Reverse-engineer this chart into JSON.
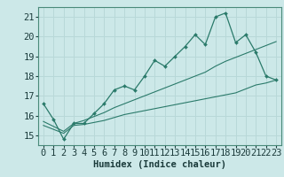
{
  "xlabel": "Humidex (Indice chaleur)",
  "bg_color": "#cce8e8",
  "grid_color": "#b8d8d8",
  "line_color": "#2a7a6a",
  "x": [
    0,
    1,
    2,
    3,
    4,
    5,
    6,
    7,
    8,
    9,
    10,
    11,
    12,
    13,
    14,
    15,
    16,
    17,
    18,
    19,
    20,
    21,
    22,
    23
  ],
  "y_main": [
    16.6,
    15.8,
    14.8,
    15.6,
    15.6,
    16.1,
    16.6,
    17.3,
    17.5,
    17.3,
    18.0,
    18.8,
    18.5,
    19.0,
    19.5,
    20.1,
    19.6,
    21.0,
    21.2,
    19.7,
    20.1,
    19.2,
    18.0,
    17.8
  ],
  "y_low": [
    15.5,
    15.3,
    15.1,
    15.5,
    15.55,
    15.65,
    15.75,
    15.9,
    16.05,
    16.15,
    16.25,
    16.35,
    16.45,
    16.55,
    16.65,
    16.75,
    16.85,
    16.95,
    17.05,
    17.15,
    17.35,
    17.55,
    17.65,
    17.8
  ],
  "y_high": [
    15.7,
    15.45,
    15.2,
    15.6,
    15.75,
    15.95,
    16.15,
    16.4,
    16.6,
    16.8,
    17.0,
    17.2,
    17.4,
    17.6,
    17.8,
    18.0,
    18.2,
    18.5,
    18.75,
    18.95,
    19.15,
    19.35,
    19.55,
    19.75
  ],
  "ylim": [
    14.5,
    21.5
  ],
  "xlim": [
    -0.5,
    23.5
  ],
  "yticks": [
    15,
    16,
    17,
    18,
    19,
    20,
    21
  ],
  "xticks": [
    0,
    1,
    2,
    3,
    4,
    5,
    6,
    7,
    8,
    9,
    10,
    11,
    12,
    13,
    14,
    15,
    16,
    17,
    18,
    19,
    20,
    21,
    22,
    23
  ],
  "tick_fontsize": 7.5,
  "xlabel_fontsize": 7.5
}
